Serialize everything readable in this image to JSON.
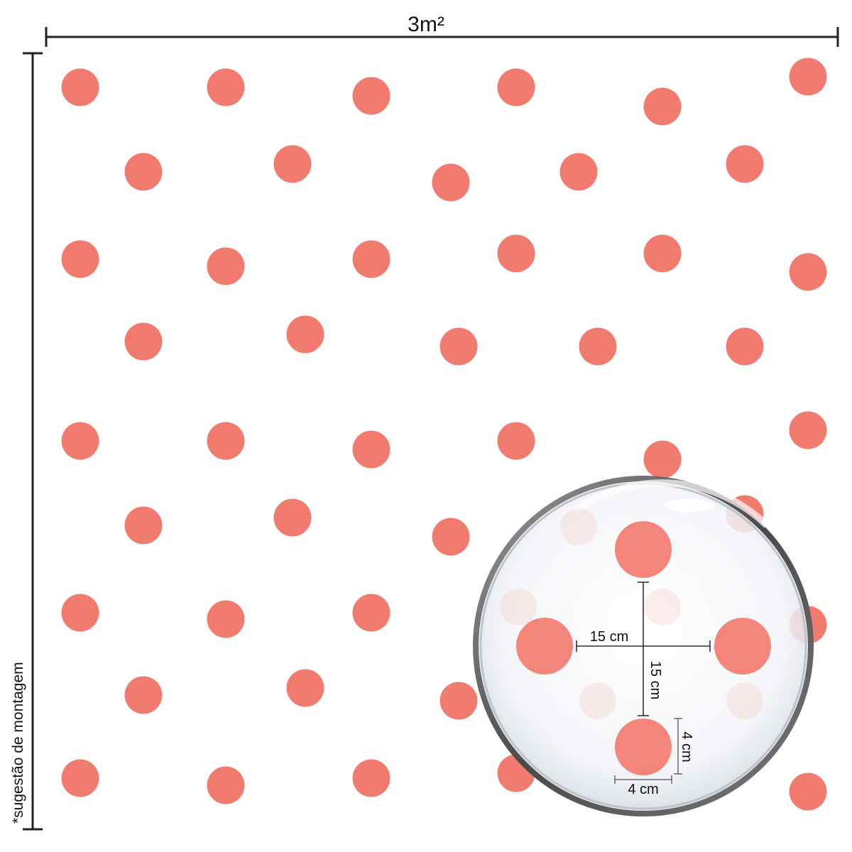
{
  "colors": {
    "dot": "#f27b70",
    "line": "#222222",
    "background": "#ffffff",
    "lens_rim": "#5a5a5a"
  },
  "labels": {
    "width": "3m²",
    "note": "*sugestão de montagem",
    "spacing_h": "15 cm",
    "spacing_v": "15 cm",
    "dot_height": "4 cm",
    "dot_width": "4 cm"
  }
}
